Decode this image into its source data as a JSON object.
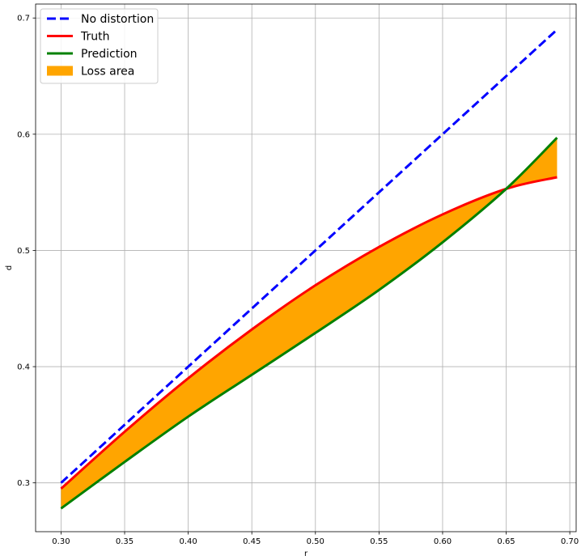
{
  "chart_data": {
    "type": "line",
    "title": "",
    "xlabel": "r",
    "ylabel": "d",
    "xlim": [
      0.28,
      0.705
    ],
    "ylim": [
      0.258,
      0.712
    ],
    "xticks": [
      0.3,
      0.35,
      0.4,
      0.45,
      0.5,
      0.55,
      0.6,
      0.65,
      0.7
    ],
    "xtick_labels": [
      "0.30",
      "0.35",
      "0.40",
      "0.45",
      "0.50",
      "0.55",
      "0.60",
      "0.65",
      "0.70"
    ],
    "yticks": [
      0.3,
      0.4,
      0.5,
      0.6,
      0.7
    ],
    "ytick_labels": [
      "0.3",
      "0.4",
      "0.5",
      "0.6",
      "0.7"
    ],
    "grid": true,
    "legend": "top-left",
    "x": [
      0.3,
      0.35,
      0.4,
      0.45,
      0.5,
      0.55,
      0.6,
      0.65,
      0.69
    ],
    "series": [
      {
        "name": "No distortion",
        "style": "dashed",
        "color": "#0000ff",
        "values": [
          0.3,
          0.35,
          0.4,
          0.45,
          0.5,
          0.55,
          0.6,
          0.65,
          0.69
        ]
      },
      {
        "name": "Truth",
        "style": "solid",
        "color": "#ff0000",
        "values": [
          0.295,
          0.344,
          0.39,
          0.432,
          0.47,
          0.503,
          0.531,
          0.553,
          0.563
        ]
      },
      {
        "name": "Prediction",
        "style": "solid",
        "color": "#008000",
        "values": [
          0.278,
          0.318,
          0.357,
          0.393,
          0.429,
          0.466,
          0.507,
          0.553,
          0.597
        ]
      }
    ],
    "fill": {
      "name": "Loss area",
      "color": "#ffa500",
      "between": [
        "Truth",
        "Prediction"
      ]
    }
  }
}
